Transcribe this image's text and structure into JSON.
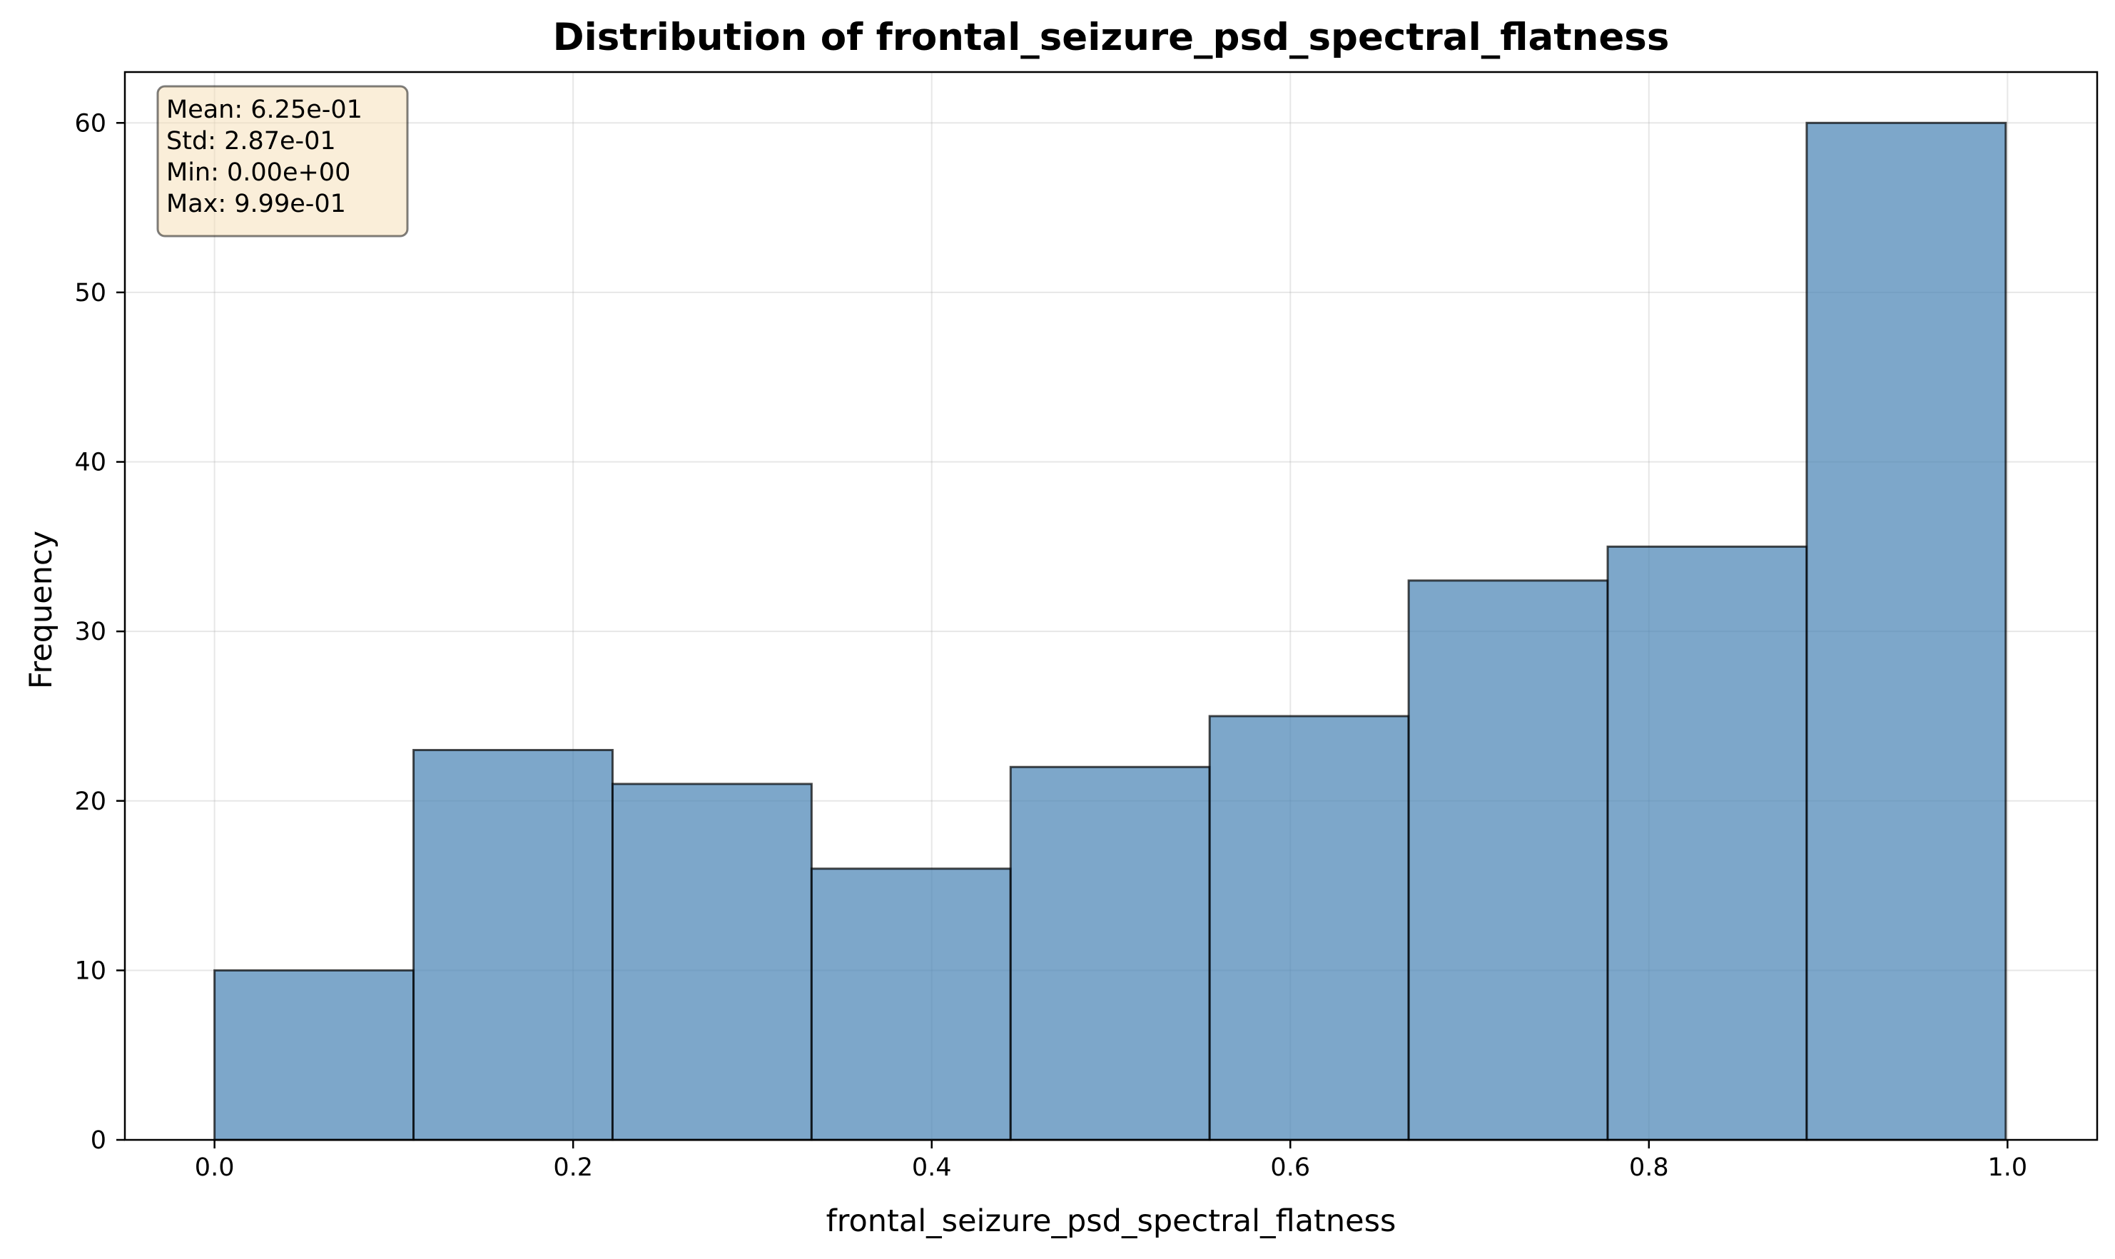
{
  "chart_data": {
    "type": "bar",
    "title": "Distribution of frontal_seizure_psd_spectral_flatness",
    "xlabel": "frontal_seizure_psd_spectral_flatness",
    "ylabel": "Frequency",
    "bin_edges": [
      0.0,
      0.111,
      0.222,
      0.333,
      0.444,
      0.555,
      0.666,
      0.777,
      0.888,
      0.999
    ],
    "values": [
      10,
      23,
      21,
      16,
      22,
      25,
      33,
      35,
      60
    ],
    "xlim": [
      -0.05,
      1.05
    ],
    "ylim": [
      0,
      63
    ],
    "xticks": [
      0.0,
      0.2,
      0.4,
      0.6,
      0.8,
      1.0
    ],
    "xtick_labels": [
      "0.0",
      "0.2",
      "0.4",
      "0.6",
      "0.8",
      "1.0"
    ],
    "yticks": [
      0,
      10,
      20,
      30,
      40,
      50,
      60
    ],
    "ytick_labels": [
      "0",
      "10",
      "20",
      "30",
      "40",
      "50",
      "60"
    ],
    "grid": true,
    "bar_color": "#4682b4",
    "bar_edge_color": "#000000",
    "stats_box": {
      "position": "top-left",
      "background": "#f5deb3",
      "lines": [
        "Mean: 6.25e-01",
        "Std: 2.87e-01",
        "Min: 0.00e+00",
        "Max: 9.99e-01"
      ]
    }
  }
}
